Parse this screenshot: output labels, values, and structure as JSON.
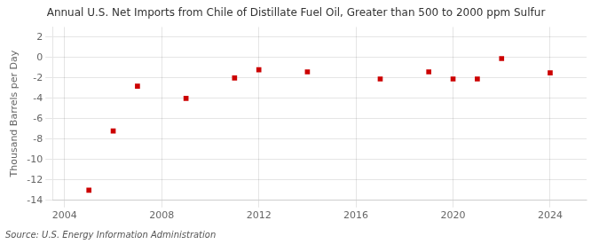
{
  "chart_data": {
    "type": "scatter",
    "title": "Annual U.S. Net Imports from Chile of Distillate Fuel Oil, Greater than 500 to 2000 ppm Sulfur",
    "ylabel": "Thousand Barrels per Day",
    "annotation": "Source: U.S. Energy Information Administration",
    "x": [
      2005,
      2006,
      2007,
      2009,
      2011,
      2012,
      2014,
      2017,
      2019,
      2020,
      2021,
      2022,
      2024
    ],
    "values": [
      -13.0,
      -7.2,
      -2.8,
      -4.0,
      -2.0,
      -1.2,
      -1.4,
      -2.1,
      -1.4,
      -2.1,
      -2.1,
      -0.1,
      -1.5
    ],
    "color": "#cc0000",
    "marker": "square",
    "xlim": [
      2003.5,
      2025.5
    ],
    "ylim": [
      -14,
      3
    ],
    "xticks": [
      2004,
      2008,
      2012,
      2016,
      2020,
      2024
    ],
    "yticks": [
      2,
      0,
      -2,
      -4,
      -6,
      -8,
      -10,
      -12,
      -14
    ],
    "grid": true
  }
}
